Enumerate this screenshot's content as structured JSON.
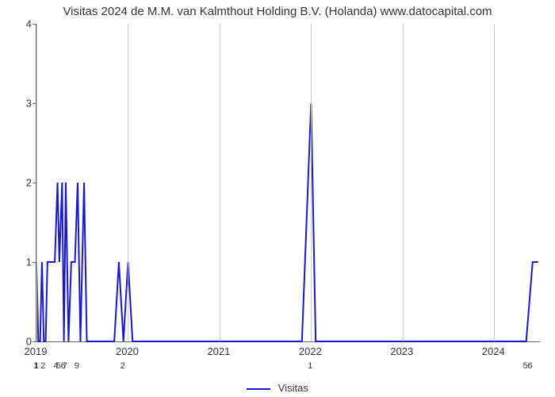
{
  "chart": {
    "type": "line",
    "title": "Visitas 2024 de M.M. van Kalmthout Holding B.V. (Holanda) www.datocapital.com",
    "title_fontsize": 15,
    "title_color": "#333333",
    "background_color": "#ffffff",
    "line_color": "#1919cc",
    "line_width": 2,
    "grid_color": "#cccccc",
    "axis_color": "#666666",
    "ylim": [
      0,
      4
    ],
    "yticks": [
      0,
      1,
      2,
      3,
      4
    ],
    "ytick_fontsize": 13,
    "xlim": [
      2019,
      2024.5
    ],
    "xtick_years": [
      2019,
      2020,
      2021,
      2022,
      2023,
      2024
    ],
    "xtick_fontsize": 13,
    "xtick_minor_labels": [
      {
        "x": 2019.0,
        "label": "1"
      },
      {
        "x": 2019.01,
        "label": "1"
      },
      {
        "x": 2019.08,
        "label": "2"
      },
      {
        "x": 2019.22,
        "label": "4"
      },
      {
        "x": 2019.25,
        "label": "5"
      },
      {
        "x": 2019.3,
        "label": "6"
      },
      {
        "x": 2019.32,
        "label": "7"
      },
      {
        "x": 2019.45,
        "label": "9"
      },
      {
        "x": 2019.95,
        "label": "2"
      },
      {
        "x": 2022.0,
        "label": "1"
      },
      {
        "x": 2024.35,
        "label": "5"
      },
      {
        "x": 2024.4,
        "label": "6"
      }
    ],
    "xtick_minor_fontsize": 11,
    "legend_label": "Visitas",
    "legend_fontsize": 13,
    "data": {
      "x": [
        2019.0,
        2019.02,
        2019.04,
        2019.06,
        2019.08,
        2019.1,
        2019.12,
        2019.2,
        2019.23,
        2019.25,
        2019.28,
        2019.3,
        2019.32,
        2019.35,
        2019.38,
        2019.42,
        2019.45,
        2019.48,
        2019.52,
        2019.55,
        2019.6,
        2019.85,
        2019.9,
        2019.95,
        2020.0,
        2020.05,
        2021.9,
        2022.0,
        2022.05,
        2022.15,
        2024.3,
        2024.35,
        2024.42,
        2024.48
      ],
      "y": [
        1,
        0,
        0,
        1,
        0,
        0,
        1,
        1,
        2,
        1,
        2,
        0,
        2,
        0,
        1,
        1,
        2,
        0,
        2,
        0,
        0,
        0,
        1,
        0,
        1,
        0,
        0,
        3,
        0,
        0,
        0,
        0,
        1,
        1
      ]
    }
  }
}
